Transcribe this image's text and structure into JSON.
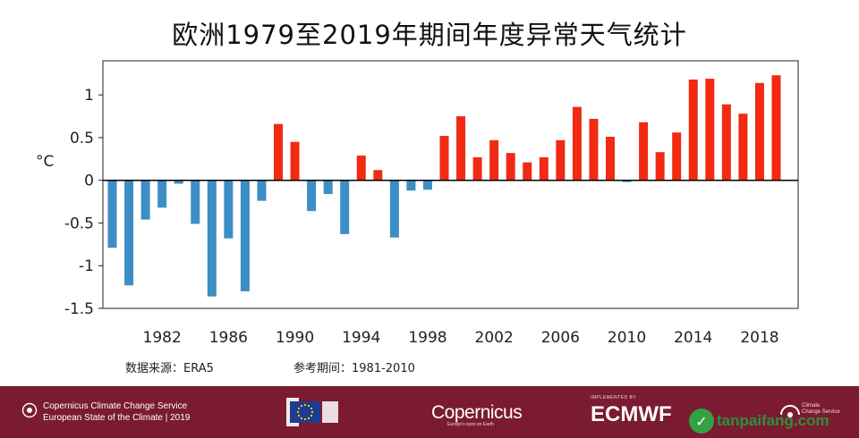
{
  "title": "欧洲1979至2019年期间年度异常天气统计",
  "footnotes": {
    "source_label": "数据来源：",
    "source_value": "ERA5",
    "reference_label": "参考期间：",
    "reference_value": "1981-2010"
  },
  "footer": {
    "service_line1": "Copernicus Climate Change Service",
    "service_line2": "European State of the Climate | 2019",
    "copernicus": "Copernicus",
    "copernicus_sub": "Europe's eyes on Earth",
    "ecmwf_top": "IMPLEMENTED BY",
    "ecmwf": "ECMWF",
    "ccs_line1": "Climate",
    "ccs_line2": "Change Service"
  },
  "watermark": {
    "text": "tanpaifang.com",
    "icon": "leaf-icon"
  },
  "colors": {
    "positive": "#f02a13",
    "negative": "#3d8ec4",
    "footer_bg": "#7a1b31"
  },
  "chart_data": {
    "type": "bar",
    "title": "欧洲1979至2019年期间年度异常天气统计",
    "xlabel": "",
    "ylabel": "°C",
    "ylim": [
      -1.5,
      1.4
    ],
    "yticks": [
      -1.5,
      -1,
      -0.5,
      0,
      0.5,
      1
    ],
    "ytick_labels": [
      "-1.5",
      "-1",
      "-0.5",
      "0",
      "0.5",
      "1"
    ],
    "xtick_years": [
      1982,
      1986,
      1990,
      1994,
      1998,
      2002,
      2006,
      2010,
      2014,
      2018
    ],
    "grid": false,
    "years": [
      1979,
      1980,
      1981,
      1982,
      1983,
      1984,
      1985,
      1986,
      1987,
      1988,
      1989,
      1990,
      1991,
      1992,
      1993,
      1994,
      1995,
      1996,
      1997,
      1998,
      1999,
      2000,
      2001,
      2002,
      2003,
      2004,
      2005,
      2006,
      2007,
      2008,
      2009,
      2010,
      2011,
      2012,
      2013,
      2014,
      2015,
      2016,
      2017,
      2018,
      2019
    ],
    "values": [
      -0.79,
      -1.23,
      -0.46,
      -0.32,
      -0.04,
      -0.51,
      -1.36,
      -0.68,
      -1.3,
      -0.24,
      0.66,
      0.45,
      -0.36,
      -0.16,
      -0.63,
      0.29,
      0.12,
      -0.67,
      -0.12,
      -0.11,
      0.52,
      0.75,
      0.27,
      0.47,
      0.32,
      0.21,
      0.27,
      0.47,
      0.86,
      0.72,
      0.51,
      -0.02,
      0.68,
      0.33,
      0.56,
      1.18,
      1.19,
      0.89,
      0.78,
      1.14,
      1.23
    ]
  }
}
